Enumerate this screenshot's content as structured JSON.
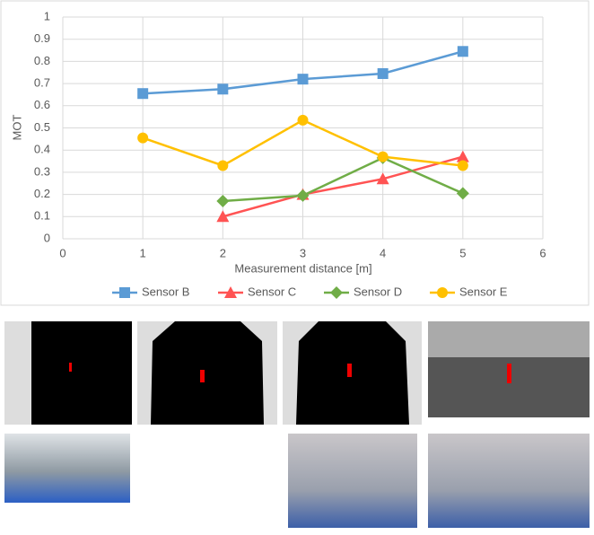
{
  "chart_data": {
    "type": "line",
    "x_label": "Measurement distance [m]",
    "y_label": "MOT",
    "x": [
      1,
      2,
      3,
      4,
      5
    ],
    "series": [
      {
        "name": "Sensor B",
        "color": "#5b9bd5",
        "marker": "square",
        "values": [
          0.655,
          0.675,
          0.72,
          0.745,
          0.845
        ]
      },
      {
        "name": "Sensor C",
        "color": "#ff5353",
        "marker": "triangle",
        "values": [
          null,
          0.1,
          0.2,
          0.27,
          0.37
        ]
      },
      {
        "name": "Sensor D",
        "color": "#70ad47",
        "marker": "diamond",
        "values": [
          null,
          0.17,
          0.195,
          0.365,
          0.205
        ]
      },
      {
        "name": "Sensor E",
        "color": "#ffc000",
        "marker": "circle",
        "values": [
          0.455,
          0.33,
          0.535,
          0.37,
          0.33
        ]
      }
    ],
    "xlim": [
      0,
      6
    ],
    "xticks": [
      0,
      1,
      2,
      3,
      4,
      5,
      6
    ],
    "ylim": [
      0,
      1
    ],
    "yticks": [
      0,
      0.1,
      0.2,
      0.3,
      0.4,
      0.5,
      0.6,
      0.7,
      0.8,
      0.9,
      1
    ],
    "grid": true,
    "legend": "bottom"
  }
}
